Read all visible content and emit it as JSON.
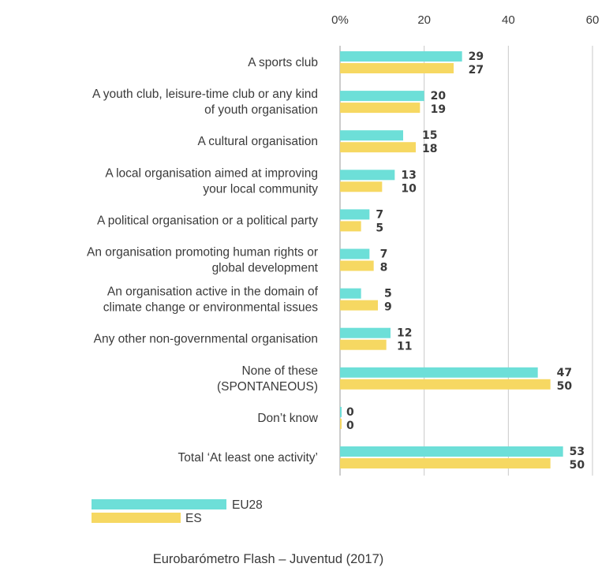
{
  "chart_data": {
    "type": "bar",
    "orientation": "horizontal",
    "categories": [
      [
        "A sports club"
      ],
      [
        "A youth club, leisure-time club or any kind",
        "of youth organisation"
      ],
      [
        "A cultural organisation"
      ],
      [
        "A local organisation aimed at improving",
        "your local community"
      ],
      [
        "A political organisation or a political party"
      ],
      [
        "An organisation promoting human rights or",
        "global development"
      ],
      [
        "An organisation active in the domain of",
        "climate change or environmental issues"
      ],
      [
        "Any other non-governmental organisation"
      ],
      [
        "None of these",
        "(SPONTANEOUS)"
      ],
      [
        "Don’t know"
      ],
      [
        "Total ‘At least one activity’"
      ]
    ],
    "series": [
      {
        "name": "EU28",
        "color": "#6ddfd8",
        "values": [
          29,
          20,
          15,
          13,
          7,
          7,
          5,
          12,
          47,
          0,
          53
        ]
      },
      {
        "name": "ES",
        "color": "#f6d862",
        "values": [
          27,
          19,
          18,
          10,
          5,
          8,
          9,
          11,
          50,
          0,
          50
        ]
      }
    ],
    "xlim": [
      0,
      60
    ],
    "ticks": [
      0,
      20,
      40,
      60
    ],
    "tick_labels": [
      "0%",
      "20",
      "40",
      "60"
    ],
    "grid": true,
    "axis_position": "top",
    "legend_position": "bottom-left"
  },
  "source": "Eurobarómetro Flash – Juventud (2017)"
}
